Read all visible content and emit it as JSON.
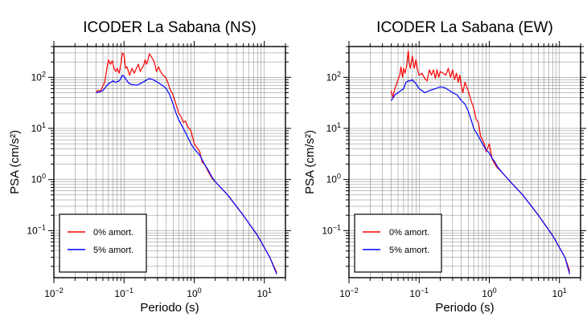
{
  "chart_data": [
    {
      "type": "line",
      "title": "ICODER La Sabana (NS)",
      "xlabel": "Periodo (s)",
      "ylabel": "PSA (cm/s²)",
      "xscale": "log",
      "yscale": "log",
      "xlim": [
        0.01,
        20
      ],
      "ylim": [
        0.012,
        400
      ],
      "grid": true,
      "legend_position": "bottom-left",
      "x_ticks": [
        {
          "value": 0.01,
          "base": "10",
          "exp": "−2"
        },
        {
          "value": 0.1,
          "base": "10",
          "exp": "−1"
        },
        {
          "value": 1,
          "base": "10",
          "exp": "0"
        },
        {
          "value": 10,
          "base": "10",
          "exp": "1"
        }
      ],
      "y_ticks": [
        {
          "value": 0.1,
          "base": "10",
          "exp": "−1"
        },
        {
          "value": 1,
          "base": "10",
          "exp": "0"
        },
        {
          "value": 10,
          "base": "10",
          "exp": "1"
        },
        {
          "value": 100,
          "base": "10",
          "exp": "2"
        }
      ],
      "series": [
        {
          "name": "0% amort.",
          "color": "#ff0000",
          "points": [
            [
              0.04,
              52
            ],
            [
              0.043,
              56
            ],
            [
              0.046,
              52
            ],
            [
              0.05,
              68
            ],
            [
              0.053,
              80
            ],
            [
              0.057,
              150
            ],
            [
              0.06,
              220
            ],
            [
              0.064,
              180
            ],
            [
              0.068,
              210
            ],
            [
              0.072,
              150
            ],
            [
              0.076,
              130
            ],
            [
              0.08,
              150
            ],
            [
              0.085,
              120
            ],
            [
              0.09,
              180
            ],
            [
              0.095,
              300
            ],
            [
              0.1,
              280
            ],
            [
              0.105,
              150
            ],
            [
              0.11,
              160
            ],
            [
              0.12,
              110
            ],
            [
              0.13,
              150
            ],
            [
              0.14,
              120
            ],
            [
              0.15,
              150
            ],
            [
              0.16,
              180
            ],
            [
              0.17,
              130
            ],
            [
              0.18,
              150
            ],
            [
              0.19,
              170
            ],
            [
              0.2,
              220
            ],
            [
              0.21,
              180
            ],
            [
              0.22,
              220
            ],
            [
              0.23,
              290
            ],
            [
              0.25,
              240
            ],
            [
              0.27,
              200
            ],
            [
              0.29,
              130
            ],
            [
              0.31,
              160
            ],
            [
              0.33,
              130
            ],
            [
              0.36,
              110
            ],
            [
              0.39,
              100
            ],
            [
              0.42,
              80
            ],
            [
              0.45,
              60
            ],
            [
              0.5,
              45
            ],
            [
              0.55,
              30
            ],
            [
              0.6,
              20
            ],
            [
              0.65,
              17
            ],
            [
              0.7,
              13
            ],
            [
              0.75,
              14
            ],
            [
              0.8,
              11
            ],
            [
              0.9,
              9
            ],
            [
              1.0,
              5
            ],
            [
              1.1,
              4.2
            ],
            [
              1.2,
              3.5
            ],
            [
              1.3,
              2.2
            ],
            [
              1.4,
              2.0
            ],
            [
              1.6,
              1.4
            ],
            [
              1.8,
              1.05
            ],
            [
              2.0,
              0.9
            ],
            [
              3.0,
              0.5
            ],
            [
              5.0,
              0.2
            ],
            [
              8.0,
              0.08
            ],
            [
              12.0,
              0.03
            ],
            [
              15.0,
              0.015
            ]
          ]
        },
        {
          "name": "5% amort.",
          "color": "#0000ff",
          "points": [
            [
              0.04,
              50
            ],
            [
              0.045,
              52
            ],
            [
              0.05,
              55
            ],
            [
              0.055,
              65
            ],
            [
              0.06,
              75
            ],
            [
              0.065,
              80
            ],
            [
              0.07,
              85
            ],
            [
              0.075,
              80
            ],
            [
              0.08,
              82
            ],
            [
              0.085,
              85
            ],
            [
              0.09,
              95
            ],
            [
              0.095,
              110
            ],
            [
              0.1,
              105
            ],
            [
              0.11,
              85
            ],
            [
              0.12,
              75
            ],
            [
              0.13,
              72
            ],
            [
              0.15,
              70
            ],
            [
              0.17,
              75
            ],
            [
              0.2,
              85
            ],
            [
              0.23,
              95
            ],
            [
              0.26,
              90
            ],
            [
              0.3,
              80
            ],
            [
              0.35,
              70
            ],
            [
              0.4,
              60
            ],
            [
              0.45,
              45
            ],
            [
              0.5,
              30
            ],
            [
              0.55,
              20
            ],
            [
              0.6,
              15
            ],
            [
              0.7,
              10
            ],
            [
              0.8,
              7
            ],
            [
              0.9,
              5
            ],
            [
              1.0,
              4
            ],
            [
              1.2,
              3
            ],
            [
              1.4,
              2
            ],
            [
              1.6,
              1.5
            ],
            [
              1.8,
              1.1
            ],
            [
              2.0,
              0.9
            ],
            [
              3.0,
              0.5
            ],
            [
              5.0,
              0.2
            ],
            [
              8.0,
              0.08
            ],
            [
              12.0,
              0.03
            ],
            [
              15.0,
              0.014
            ]
          ]
        }
      ]
    },
    {
      "type": "line",
      "title": "ICODER La Sabana (EW)",
      "xlabel": "Periodo (s)",
      "ylabel": "PSA (cm/s²)",
      "xscale": "log",
      "yscale": "log",
      "xlim": [
        0.01,
        20
      ],
      "ylim": [
        0.012,
        400
      ],
      "grid": true,
      "legend_position": "bottom-left",
      "x_ticks": [
        {
          "value": 0.01,
          "base": "10",
          "exp": "−2"
        },
        {
          "value": 0.1,
          "base": "10",
          "exp": "−1"
        },
        {
          "value": 1,
          "base": "10",
          "exp": "0"
        },
        {
          "value": 10,
          "base": "10",
          "exp": "1"
        }
      ],
      "y_ticks": [
        {
          "value": 0.1,
          "base": "10",
          "exp": "−1"
        },
        {
          "value": 1,
          "base": "10",
          "exp": "0"
        },
        {
          "value": 10,
          "base": "10",
          "exp": "1"
        },
        {
          "value": 100,
          "base": "10",
          "exp": "2"
        }
      ],
      "series": [
        {
          "name": "0% amort.",
          "color": "#ff0000",
          "points": [
            [
              0.04,
              55
            ],
            [
              0.042,
              40
            ],
            [
              0.045,
              60
            ],
            [
              0.05,
              90
            ],
            [
              0.053,
              110
            ],
            [
              0.055,
              160
            ],
            [
              0.058,
              100
            ],
            [
              0.06,
              150
            ],
            [
              0.063,
              120
            ],
            [
              0.066,
              160
            ],
            [
              0.07,
              330
            ],
            [
              0.072,
              200
            ],
            [
              0.075,
              150
            ],
            [
              0.08,
              260
            ],
            [
              0.085,
              150
            ],
            [
              0.09,
              220
            ],
            [
              0.095,
              140
            ],
            [
              0.1,
              110
            ],
            [
              0.11,
              120
            ],
            [
              0.12,
              95
            ],
            [
              0.13,
              85
            ],
            [
              0.14,
              140
            ],
            [
              0.15,
              110
            ],
            [
              0.16,
              140
            ],
            [
              0.17,
              95
            ],
            [
              0.18,
              140
            ],
            [
              0.19,
              100
            ],
            [
              0.2,
              130
            ],
            [
              0.22,
              120
            ],
            [
              0.24,
              110
            ],
            [
              0.26,
              150
            ],
            [
              0.28,
              100
            ],
            [
              0.3,
              140
            ],
            [
              0.32,
              90
            ],
            [
              0.34,
              120
            ],
            [
              0.36,
              80
            ],
            [
              0.38,
              110
            ],
            [
              0.4,
              65
            ],
            [
              0.42,
              50
            ],
            [
              0.45,
              80
            ],
            [
              0.5,
              55
            ],
            [
              0.55,
              35
            ],
            [
              0.6,
              25
            ],
            [
              0.65,
              15
            ],
            [
              0.7,
              13
            ],
            [
              0.75,
              7
            ],
            [
              0.8,
              6
            ],
            [
              0.85,
              5
            ],
            [
              0.9,
              3.5
            ],
            [
              1.0,
              5
            ],
            [
              1.1,
              2.5
            ],
            [
              1.2,
              2.0
            ],
            [
              1.3,
              1.7
            ],
            [
              1.5,
              1.4
            ],
            [
              2.0,
              0.9
            ],
            [
              3.0,
              0.5
            ],
            [
              5.0,
              0.2
            ],
            [
              8.0,
              0.08
            ],
            [
              12.0,
              0.03
            ],
            [
              14.0,
              0.016
            ]
          ]
        },
        {
          "name": "5% amort.",
          "color": "#0000ff",
          "points": [
            [
              0.04,
              35
            ],
            [
              0.045,
              45
            ],
            [
              0.05,
              50
            ],
            [
              0.055,
              55
            ],
            [
              0.06,
              60
            ],
            [
              0.065,
              80
            ],
            [
              0.07,
              85
            ],
            [
              0.075,
              85
            ],
            [
              0.08,
              90
            ],
            [
              0.09,
              75
            ],
            [
              0.1,
              60
            ],
            [
              0.11,
              55
            ],
            [
              0.12,
              50
            ],
            [
              0.14,
              55
            ],
            [
              0.17,
              60
            ],
            [
              0.2,
              65
            ],
            [
              0.23,
              63
            ],
            [
              0.27,
              55
            ],
            [
              0.3,
              50
            ],
            [
              0.35,
              45
            ],
            [
              0.4,
              35
            ],
            [
              0.45,
              30
            ],
            [
              0.5,
              22
            ],
            [
              0.55,
              15
            ],
            [
              0.6,
              10
            ],
            [
              0.7,
              7
            ],
            [
              0.8,
              5
            ],
            [
              0.9,
              3.8
            ],
            [
              1.0,
              3.3
            ],
            [
              1.1,
              2.6
            ],
            [
              1.2,
              2.2
            ],
            [
              1.3,
              1.8
            ],
            [
              1.5,
              1.4
            ],
            [
              2.0,
              0.9
            ],
            [
              3.0,
              0.5
            ],
            [
              5.0,
              0.2
            ],
            [
              8.0,
              0.08
            ],
            [
              12.0,
              0.03
            ],
            [
              14.0,
              0.014
            ]
          ]
        }
      ]
    }
  ]
}
